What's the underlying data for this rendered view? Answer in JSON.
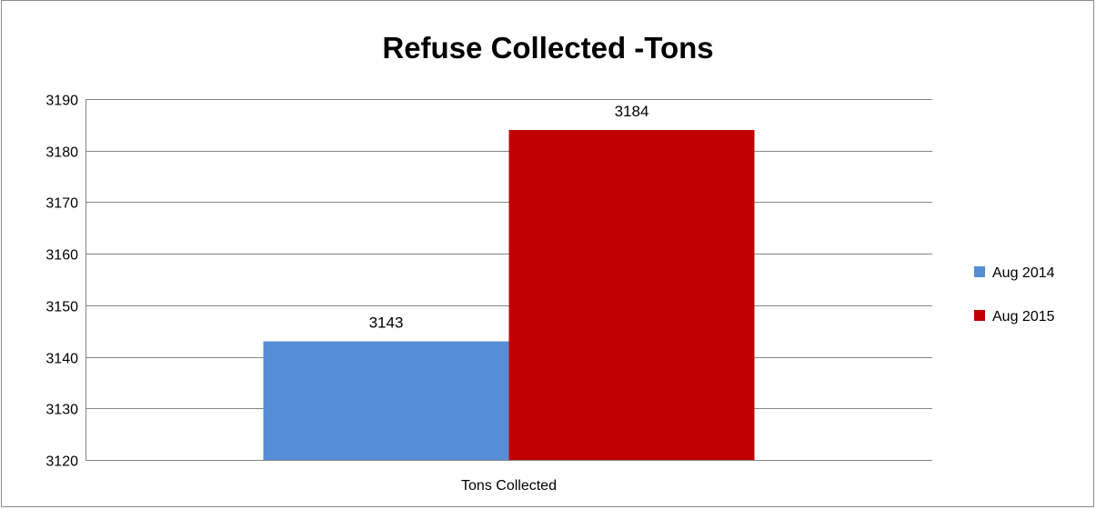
{
  "chart_data": {
    "type": "bar",
    "title": "Refuse Collected -Tons",
    "categories": [
      "Tons Collected"
    ],
    "series": [
      {
        "name": "Aug 2014",
        "values": [
          3143
        ],
        "color": "#558ED5"
      },
      {
        "name": "Aug 2015",
        "values": [
          3184
        ],
        "color": "#C00000"
      }
    ],
    "ylim": [
      3120,
      3190
    ],
    "yticks": [
      3120,
      3130,
      3140,
      3150,
      3160,
      3170,
      3180,
      3190
    ],
    "grid": true,
    "legend": "right",
    "data_labels": true
  }
}
